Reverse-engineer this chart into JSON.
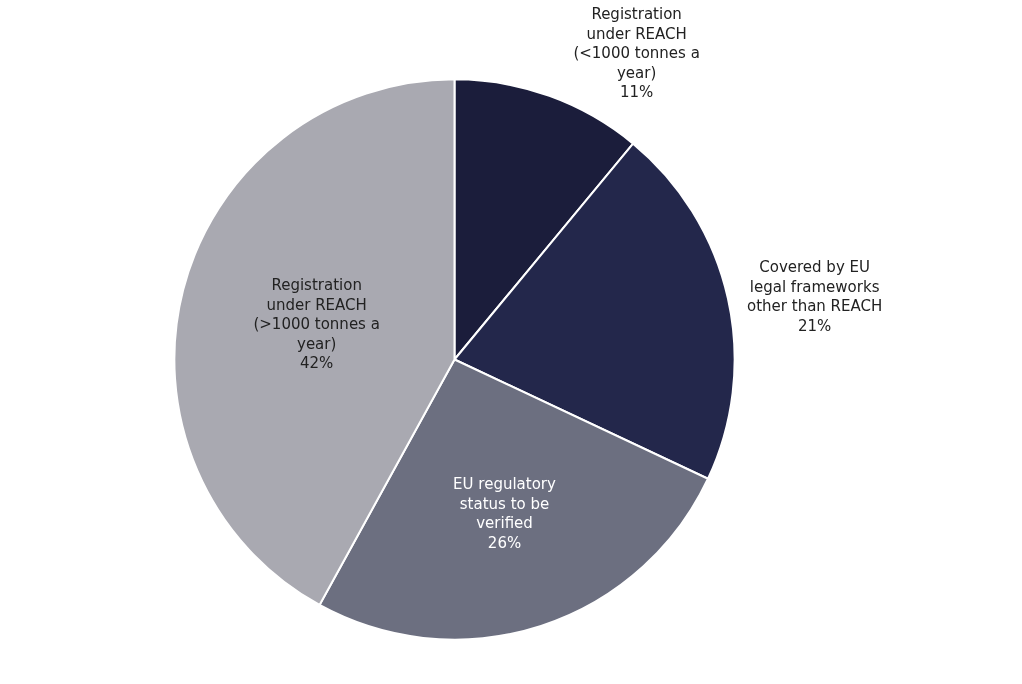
{
  "chart_data": {
    "type": "pie",
    "categories": [
      "Registration under REACH (<1000 tonnes a year)",
      "Covered by EU legal frameworks other than REACH",
      "EU regulatory status to be verified",
      "Registration under REACH (>1000 tonnes a year)"
    ],
    "values": [
      11,
      21,
      26,
      42
    ],
    "value_labels": [
      "11%",
      "21%",
      "26%",
      "42%"
    ],
    "colors": [
      "#1b1d3b",
      "#23274b",
      "#6c6f80",
      "#a9a9b1"
    ],
    "legend": false
  }
}
